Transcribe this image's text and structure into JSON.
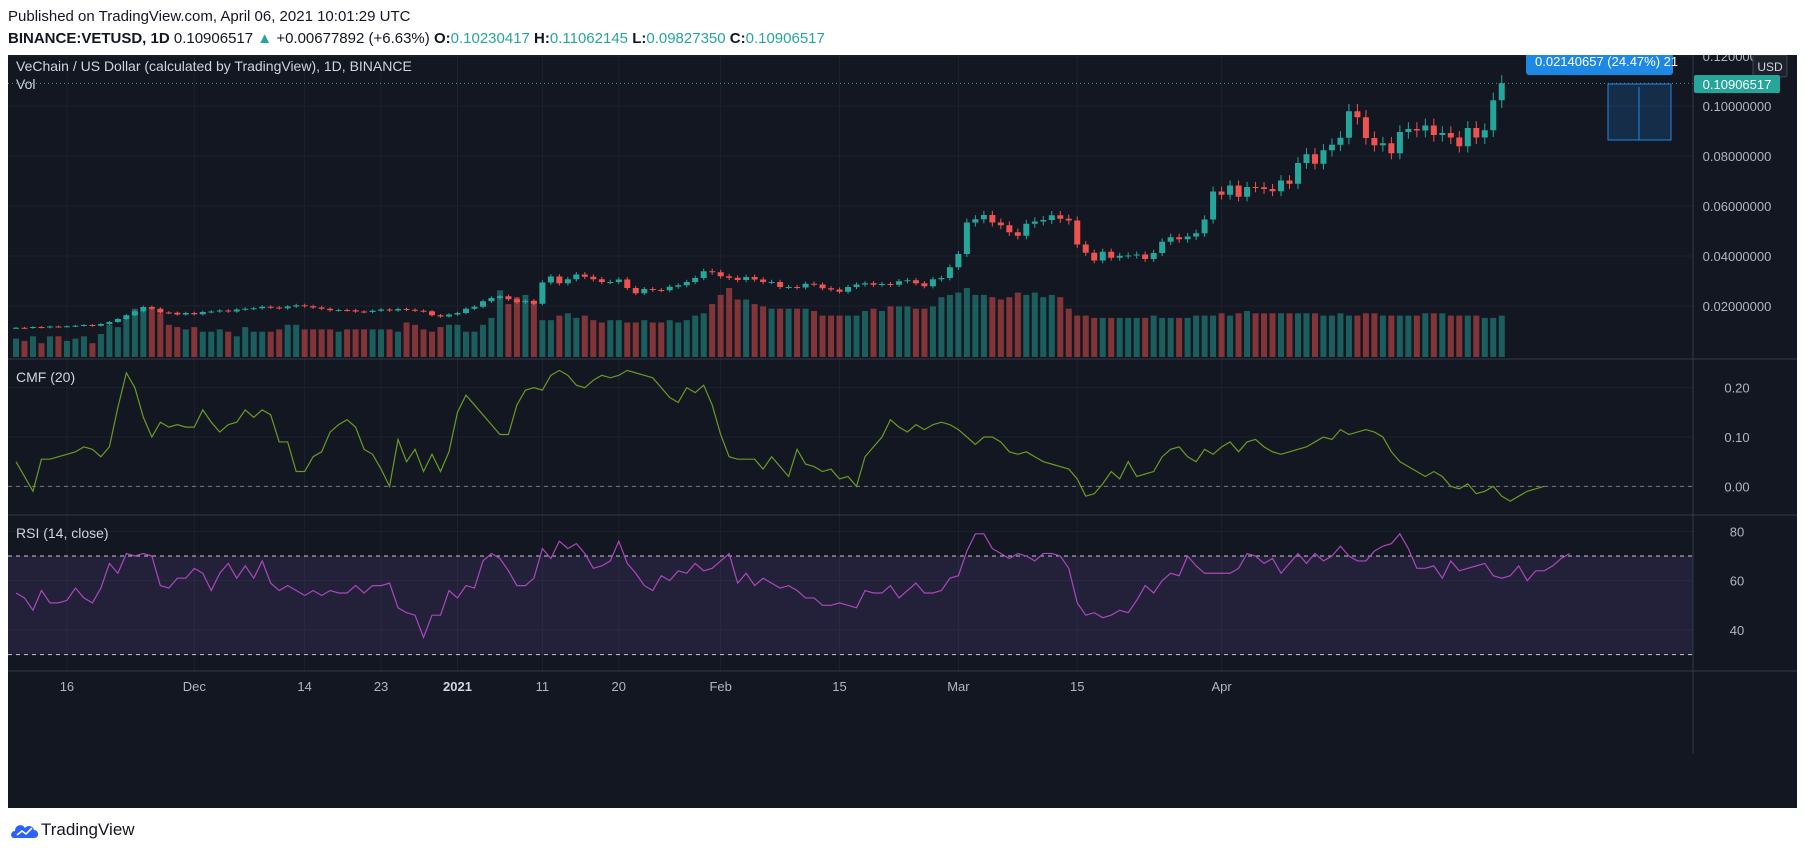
{
  "header": {
    "published": "Published on TradingView.com, April 06, 2021 10:01:29 UTC",
    "symbol": "BINANCE:VETUSD, 1D",
    "last": "0.10906517",
    "change_arrow": "▲",
    "change": "+0.00677892 (+6.63%)",
    "o_label": "O:",
    "o_value": "0.10230417",
    "h_label": "H:",
    "h_value": "0.11062145",
    "l_label": "L:",
    "l_value": "0.09827350",
    "c_label": "C:",
    "c_value": "0.10906517"
  },
  "footer": {
    "brand": "TradingView",
    "logo_icon": "tradingview-cloud-icon"
  },
  "colors": {
    "background": "#131722",
    "up": "#26a69a",
    "down": "#ef5350",
    "cmf": "#6a9a23",
    "rsi": "#ab47bc",
    "grid": "#1e222d",
    "text": "#b2b5be",
    "badge": "#1e88e5"
  },
  "chart_data": [
    {
      "type": "candlestick",
      "title": "VeChain / US Dollar (calculated by TradingView), 1D, BINANCE",
      "volume_label": "Vol",
      "currency": "USD",
      "ylim": [
        0,
        0.12
      ],
      "y_ticks": [
        "0.12000000",
        "0.10000000",
        "0.08000000",
        "0.06000000",
        "0.04000000",
        "0.02000000"
      ],
      "last_price_label": "0.10906517",
      "last_price": 0.10906517,
      "measure_label": "0.02140657 (24.47%) 21",
      "x_ticks": [
        "16",
        "Dec",
        "14",
        "23",
        "2021",
        "11",
        "20",
        "Feb",
        "15",
        "Mar",
        "15",
        "Apr"
      ],
      "start_date": "2020-11-10",
      "closes": [
        0.0113,
        0.0112,
        0.0116,
        0.0114,
        0.0118,
        0.0117,
        0.0119,
        0.0121,
        0.0124,
        0.0121,
        0.0128,
        0.0136,
        0.0148,
        0.0163,
        0.0179,
        0.0196,
        0.0189,
        0.0174,
        0.0173,
        0.0166,
        0.0172,
        0.0167,
        0.0176,
        0.0178,
        0.0182,
        0.0178,
        0.0186,
        0.0189,
        0.0191,
        0.0197,
        0.0194,
        0.0191,
        0.0198,
        0.0203,
        0.0199,
        0.0194,
        0.0189,
        0.0183,
        0.0184,
        0.0183,
        0.0178,
        0.0176,
        0.0181,
        0.0186,
        0.0182,
        0.0188,
        0.0185,
        0.0181,
        0.0179,
        0.0163,
        0.0158,
        0.0166,
        0.0172,
        0.0189,
        0.0197,
        0.0219,
        0.0232,
        0.0239,
        0.0227,
        0.0215,
        0.0221,
        0.0209,
        0.0294,
        0.0318,
        0.0291,
        0.0307,
        0.0326,
        0.0317,
        0.0307,
        0.0296,
        0.0296,
        0.0306,
        0.0272,
        0.0251,
        0.0268,
        0.0264,
        0.0263,
        0.0277,
        0.0283,
        0.0296,
        0.0312,
        0.0339,
        0.0335,
        0.0319,
        0.0313,
        0.0304,
        0.0316,
        0.0306,
        0.0296,
        0.0296,
        0.0276,
        0.0276,
        0.0274,
        0.0289,
        0.0286,
        0.0271,
        0.0266,
        0.0257,
        0.0276,
        0.0286,
        0.0291,
        0.0285,
        0.0288,
        0.0285,
        0.0299,
        0.0303,
        0.0291,
        0.0279,
        0.0307,
        0.0312,
        0.0355,
        0.0408,
        0.0534,
        0.0547,
        0.0564,
        0.0534,
        0.0523,
        0.0495,
        0.0481,
        0.0529,
        0.0538,
        0.0544,
        0.0563,
        0.0549,
        0.0542,
        0.0446,
        0.0413,
        0.0382,
        0.0417,
        0.0393,
        0.0401,
        0.0402,
        0.0406,
        0.0388,
        0.0412,
        0.0457,
        0.0475,
        0.0467,
        0.0478,
        0.0491,
        0.0546,
        0.0658,
        0.0645,
        0.0682,
        0.0637,
        0.0676,
        0.0675,
        0.0668,
        0.0659,
        0.0702,
        0.0689,
        0.0772,
        0.0807,
        0.0769,
        0.0823,
        0.0845,
        0.0873,
        0.0979,
        0.0955,
        0.0872,
        0.0843,
        0.0851,
        0.0811,
        0.0896,
        0.0908,
        0.0902,
        0.0922,
        0.0884,
        0.0892,
        0.0874,
        0.0839,
        0.0912,
        0.0874,
        0.0903,
        0.1023,
        0.1091
      ],
      "volumes": [
        8,
        7,
        9,
        6,
        9,
        9,
        7,
        8,
        9,
        6,
        10,
        14,
        13,
        18,
        21,
        20,
        21,
        19,
        14,
        13,
        12,
        13,
        11,
        11,
        12,
        11,
        9,
        13,
        11,
        11,
        11,
        12,
        14,
        14,
        12,
        12,
        12,
        12,
        11,
        12,
        12,
        12,
        12,
        12,
        12,
        11,
        15,
        14,
        12,
        11,
        13,
        14,
        14,
        11,
        11,
        14,
        17,
        29,
        23,
        26,
        27,
        24,
        16,
        16,
        18,
        19,
        17,
        18,
        16,
        15,
        16,
        16,
        15,
        15,
        16,
        15,
        15,
        16,
        15,
        16,
        18,
        19,
        23,
        27,
        30,
        25,
        25,
        23,
        22,
        21,
        21,
        21,
        21,
        21,
        20,
        18,
        18,
        18,
        18,
        18,
        20,
        21,
        20,
        22,
        22,
        22,
        21,
        21,
        22,
        26,
        27,
        28,
        30,
        27,
        27,
        26,
        25,
        26,
        28,
        27,
        28,
        26,
        27,
        26,
        21,
        18,
        18,
        17,
        17,
        17,
        17,
        17,
        17,
        17,
        18,
        17,
        17,
        17,
        17,
        18,
        18,
        18,
        19,
        18,
        19,
        20,
        19,
        19,
        19,
        19,
        19,
        19,
        19,
        19,
        18,
        18,
        19,
        18,
        18,
        19,
        19,
        18,
        18,
        18,
        18,
        18,
        19,
        19,
        19,
        18,
        18,
        18,
        18,
        17,
        17,
        18,
        18,
        18,
        18
      ]
    },
    {
      "type": "line",
      "title": "CMF (20)",
      "ylim": [
        -0.05,
        0.25
      ],
      "y_ticks": [
        "0.20",
        "0.10",
        "0.00"
      ],
      "zero_line": 0,
      "values": [
        0.05,
        0.02,
        -0.01,
        0.055,
        0.055,
        0.06,
        0.065,
        0.07,
        0.08,
        0.075,
        0.06,
        0.08,
        0.16,
        0.23,
        0.2,
        0.14,
        0.1,
        0.13,
        0.12,
        0.125,
        0.12,
        0.12,
        0.155,
        0.13,
        0.11,
        0.125,
        0.13,
        0.155,
        0.14,
        0.155,
        0.145,
        0.09,
        0.09,
        0.03,
        0.03,
        0.06,
        0.07,
        0.11,
        0.125,
        0.135,
        0.12,
        0.075,
        0.065,
        0.035,
        0.0,
        0.095,
        0.05,
        0.075,
        0.03,
        0.065,
        0.03,
        0.07,
        0.15,
        0.185,
        0.165,
        0.145,
        0.125,
        0.105,
        0.105,
        0.165,
        0.195,
        0.2,
        0.195,
        0.225,
        0.235,
        0.225,
        0.205,
        0.2,
        0.215,
        0.225,
        0.22,
        0.225,
        0.235,
        0.23,
        0.225,
        0.22,
        0.2,
        0.18,
        0.17,
        0.2,
        0.19,
        0.205,
        0.165,
        0.105,
        0.06,
        0.055,
        0.055,
        0.055,
        0.035,
        0.06,
        0.04,
        0.02,
        0.075,
        0.045,
        0.04,
        0.03,
        0.035,
        0.015,
        0.02,
        0.0,
        0.06,
        0.08,
        0.1,
        0.135,
        0.12,
        0.11,
        0.125,
        0.115,
        0.125,
        0.13,
        0.125,
        0.115,
        0.1,
        0.085,
        0.1,
        0.1,
        0.09,
        0.07,
        0.065,
        0.07,
        0.06,
        0.05,
        0.045,
        0.04,
        0.035,
        0.015,
        -0.02,
        -0.015,
        0.005,
        0.03,
        0.015,
        0.05,
        0.02,
        0.025,
        0.03,
        0.06,
        0.075,
        0.08,
        0.06,
        0.05,
        0.075,
        0.065,
        0.08,
        0.09,
        0.07,
        0.09,
        0.095,
        0.08,
        0.07,
        0.065,
        0.07,
        0.075,
        0.08,
        0.09,
        0.1,
        0.095,
        0.115,
        0.105,
        0.11,
        0.115,
        0.11,
        0.1,
        0.07,
        0.05,
        0.04,
        0.03,
        0.02,
        0.03,
        0.02,
        0.0,
        -0.005,
        0.005,
        -0.015,
        -0.01,
        0.0,
        -0.02,
        -0.03,
        -0.02,
        -0.01,
        -0.005,
        0.0
      ]
    },
    {
      "type": "line",
      "title": "RSI (14, close)",
      "ylim": [
        25,
        85
      ],
      "y_ticks": [
        "80",
        "60",
        "40"
      ],
      "bands": [
        30,
        70
      ],
      "values": [
        55,
        53,
        48,
        56,
        51,
        51,
        52,
        57,
        53,
        51,
        57,
        67,
        63,
        71,
        70,
        71,
        70,
        58,
        57,
        61,
        61,
        65,
        63,
        56,
        63,
        67,
        61,
        66,
        61,
        68,
        59,
        56,
        58,
        56,
        54,
        56,
        54,
        56,
        55,
        55,
        58,
        55,
        58,
        58,
        59,
        49,
        47,
        46,
        37,
        46,
        46,
        56,
        53,
        58,
        57,
        68,
        71,
        69,
        64,
        58,
        58,
        61,
        73,
        69,
        76,
        73,
        75,
        71,
        65,
        66,
        68,
        76,
        67,
        63,
        58,
        56,
        62,
        60,
        64,
        63,
        67,
        64,
        65,
        68,
        71,
        59,
        63,
        58,
        61,
        59,
        57,
        58,
        56,
        53,
        53,
        50,
        50,
        51,
        50,
        49,
        56,
        55,
        55,
        58,
        53,
        56,
        59,
        55,
        55,
        56,
        61,
        62,
        72,
        79,
        79,
        73,
        71,
        69,
        71,
        70,
        68,
        71,
        71,
        70,
        65,
        51,
        46,
        47,
        45,
        46,
        48,
        47,
        52,
        58,
        55,
        60,
        63,
        62,
        70,
        66,
        63,
        63,
        63,
        63,
        65,
        71,
        70,
        67,
        69,
        63,
        67,
        71,
        67,
        71,
        68,
        70,
        74,
        70,
        68,
        68,
        72,
        74,
        75,
        79,
        73,
        65,
        65,
        66,
        61,
        68,
        64,
        65,
        66,
        67,
        62,
        61,
        62,
        66,
        60,
        64,
        64,
        66,
        69,
        71
      ]
    }
  ]
}
